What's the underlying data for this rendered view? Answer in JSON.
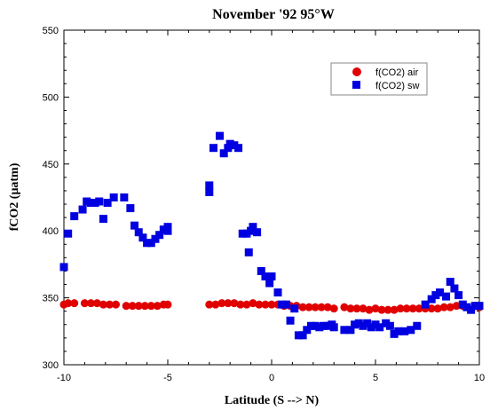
{
  "chart_data": {
    "type": "scatter",
    "title": "November '92 95°W",
    "xlabel": "Latitude (S --> N)",
    "ylabel": "fCO2 (μatm)",
    "xlim": [
      -10,
      10
    ],
    "ylim": [
      300,
      550
    ],
    "xticks": [
      -10,
      -5,
      0,
      5,
      10
    ],
    "xtick_labels": [
      "-10",
      "-5",
      "0",
      "5",
      "10"
    ],
    "yticks": [
      300,
      350,
      400,
      450,
      500,
      550
    ],
    "ytick_labels": [
      "300",
      "350",
      "400",
      "450",
      "500",
      "550"
    ],
    "grid": false,
    "legend_position": "top-right",
    "series": [
      {
        "name": "f(CO2) air",
        "marker": "circle",
        "color": "#e00000",
        "points": [
          [
            -10,
            345
          ],
          [
            -9.8,
            346
          ],
          [
            -9.5,
            346
          ],
          [
            -9.0,
            346
          ],
          [
            -8.7,
            346
          ],
          [
            -8.4,
            346
          ],
          [
            -8.1,
            345
          ],
          [
            -7.8,
            345
          ],
          [
            -7.5,
            345
          ],
          [
            -7.0,
            344
          ],
          [
            -6.7,
            344
          ],
          [
            -6.4,
            344
          ],
          [
            -6.1,
            344
          ],
          [
            -5.8,
            344
          ],
          [
            -5.5,
            344
          ],
          [
            -5.2,
            345
          ],
          [
            -5.0,
            345
          ],
          [
            -3.0,
            345
          ],
          [
            -2.7,
            345
          ],
          [
            -2.4,
            346
          ],
          [
            -2.1,
            346
          ],
          [
            -1.8,
            346
          ],
          [
            -1.5,
            345
          ],
          [
            -1.2,
            345
          ],
          [
            -0.9,
            346
          ],
          [
            -0.6,
            345
          ],
          [
            -0.3,
            345
          ],
          [
            0.0,
            345
          ],
          [
            0.3,
            345
          ],
          [
            0.6,
            344
          ],
          [
            0.9,
            344
          ],
          [
            1.2,
            344
          ],
          [
            1.5,
            343
          ],
          [
            1.8,
            343
          ],
          [
            2.1,
            343
          ],
          [
            2.4,
            343
          ],
          [
            2.7,
            343
          ],
          [
            3.0,
            342
          ],
          [
            3.5,
            343
          ],
          [
            3.8,
            342
          ],
          [
            4.1,
            342
          ],
          [
            4.4,
            342
          ],
          [
            4.7,
            341
          ],
          [
            5.0,
            342
          ],
          [
            5.3,
            341
          ],
          [
            5.6,
            341
          ],
          [
            5.9,
            341
          ],
          [
            6.2,
            342
          ],
          [
            6.5,
            342
          ],
          [
            6.8,
            342
          ],
          [
            7.1,
            342
          ],
          [
            7.4,
            342
          ],
          [
            7.7,
            342
          ],
          [
            8.0,
            342
          ],
          [
            8.3,
            343
          ],
          [
            8.6,
            343
          ],
          [
            8.9,
            344
          ],
          [
            9.2,
            344
          ],
          [
            9.8,
            344
          ],
          [
            10.0,
            343
          ]
        ]
      },
      {
        "name": "f(CO2) sw",
        "marker": "square",
        "color": "#0000e0",
        "points": [
          [
            -10,
            373
          ],
          [
            -9.8,
            398
          ],
          [
            -9.5,
            411
          ],
          [
            -9.1,
            416
          ],
          [
            -8.9,
            422
          ],
          [
            -8.7,
            421
          ],
          [
            -8.5,
            421
          ],
          [
            -8.3,
            422
          ],
          [
            -8.1,
            409
          ],
          [
            -7.9,
            421
          ],
          [
            -7.6,
            425
          ],
          [
            -7.1,
            425
          ],
          [
            -6.8,
            417
          ],
          [
            -6.6,
            404
          ],
          [
            -6.4,
            399
          ],
          [
            -6.2,
            395
          ],
          [
            -6.0,
            391
          ],
          [
            -5.8,
            391
          ],
          [
            -5.6,
            394
          ],
          [
            -5.4,
            397
          ],
          [
            -5.2,
            401
          ],
          [
            -5.0,
            403
          ],
          [
            -5.0,
            400
          ],
          [
            -3.0,
            429
          ],
          [
            -3.0,
            434
          ],
          [
            -2.8,
            462
          ],
          [
            -2.5,
            471
          ],
          [
            -2.3,
            458
          ],
          [
            -2.1,
            462
          ],
          [
            -2.0,
            465
          ],
          [
            -1.8,
            464
          ],
          [
            -1.6,
            462
          ],
          [
            -1.4,
            398
          ],
          [
            -1.2,
            398
          ],
          [
            -1.1,
            384
          ],
          [
            -1.0,
            400
          ],
          [
            -0.9,
            403
          ],
          [
            -0.7,
            399
          ],
          [
            -0.5,
            370
          ],
          [
            -0.3,
            366
          ],
          [
            -0.1,
            361
          ],
          [
            0.0,
            366
          ],
          [
            0.3,
            354
          ],
          [
            0.5,
            345
          ],
          [
            0.7,
            345
          ],
          [
            0.9,
            333
          ],
          [
            1.1,
            342
          ],
          [
            1.3,
            322
          ],
          [
            1.5,
            322
          ],
          [
            1.7,
            326
          ],
          [
            1.9,
            329
          ],
          [
            2.1,
            329
          ],
          [
            2.3,
            328
          ],
          [
            2.5,
            329
          ],
          [
            2.7,
            329
          ],
          [
            2.9,
            330
          ],
          [
            3.0,
            328
          ],
          [
            3.5,
            326
          ],
          [
            3.8,
            326
          ],
          [
            4.0,
            330
          ],
          [
            4.2,
            331
          ],
          [
            4.4,
            329
          ],
          [
            4.6,
            331
          ],
          [
            4.8,
            328
          ],
          [
            5.0,
            330
          ],
          [
            5.2,
            328
          ],
          [
            5.5,
            331
          ],
          [
            5.7,
            329
          ],
          [
            5.9,
            323
          ],
          [
            6.1,
            325
          ],
          [
            6.4,
            325
          ],
          [
            6.7,
            326
          ],
          [
            7.0,
            329
          ],
          [
            7.4,
            345
          ],
          [
            7.7,
            349
          ],
          [
            7.9,
            352
          ],
          [
            8.1,
            354
          ],
          [
            8.4,
            351
          ],
          [
            8.6,
            362
          ],
          [
            8.8,
            357
          ],
          [
            9.0,
            352
          ],
          [
            9.2,
            345
          ],
          [
            9.4,
            343
          ],
          [
            9.6,
            341
          ],
          [
            9.8,
            344
          ],
          [
            10.0,
            344
          ]
        ]
      }
    ]
  }
}
